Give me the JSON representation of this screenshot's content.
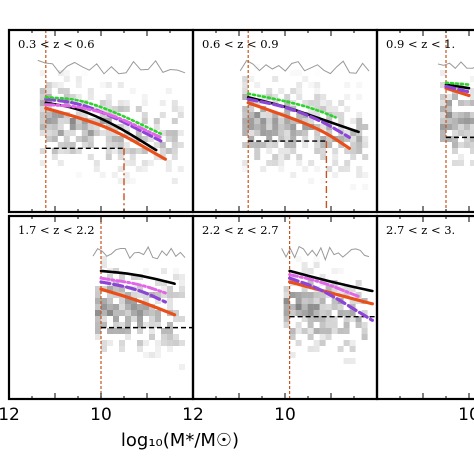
{
  "chart_data": {
    "type": "line",
    "xlabel": "log₁₀(M*/M☉)",
    "x_axis_reversed": true,
    "grid": false,
    "colors": {
      "black_curve": "#000000",
      "orange_curve": "#ea4f1a",
      "purple_curve": "#8d45d8",
      "magenta_curve": "#e267e8",
      "green_curve": "#2bd42b",
      "completeness_line": "#c9541a",
      "histogram_fill": "#5a5a5a",
      "histogram_outline": "#9a9a9a"
    },
    "panels": [
      {
        "label": "0.3 < z < 0.6",
        "xlim": [
          12,
          8
        ],
        "x_ticks": [
          "12",
          "10"
        ],
        "mass_limit": 11.2,
        "secondary_limit": 9.5,
        "reference_level": 0.35,
        "curves": {
          "black": [
            [
              11.2,
              0.6
            ],
            [
              10.5,
              0.57
            ],
            [
              9.7,
              0.48
            ],
            [
              8.8,
              0.34
            ]
          ],
          "orange": [
            [
              11.2,
              0.57
            ],
            [
              10.5,
              0.52
            ],
            [
              9.7,
              0.45
            ],
            [
              8.6,
              0.29
            ]
          ],
          "purple": [
            [
              11.2,
              0.62
            ],
            [
              10.5,
              0.6
            ],
            [
              9.7,
              0.52
            ],
            [
              8.7,
              0.39
            ]
          ],
          "magenta": [
            [
              11.2,
              0.59
            ],
            [
              10.5,
              0.58
            ],
            [
              9.7,
              0.53
            ],
            [
              8.7,
              0.41
            ]
          ],
          "green": [
            [
              11.2,
              0.63
            ],
            [
              10.5,
              0.62
            ],
            [
              9.7,
              0.55
            ],
            [
              8.7,
              0.43
            ]
          ]
        }
      },
      {
        "label": "0.6 < z < 0.9",
        "xlim": [
          12,
          8
        ],
        "x_ticks": [],
        "mass_limit": 10.8,
        "secondary_limit": 9.1,
        "reference_level": 0.39,
        "curves": {
          "black": [
            [
              10.8,
              0.63
            ],
            [
              10.0,
              0.58
            ],
            [
              9.2,
              0.51
            ],
            [
              8.4,
              0.44
            ]
          ],
          "orange": [
            [
              10.8,
              0.6
            ],
            [
              10.0,
              0.53
            ],
            [
              9.2,
              0.45
            ],
            [
              8.6,
              0.35
            ]
          ],
          "purple": [
            [
              10.8,
              0.62
            ],
            [
              10.0,
              0.58
            ],
            [
              9.2,
              0.5
            ],
            [
              8.6,
              0.41
            ]
          ],
          "green": [
            [
              10.8,
              0.65
            ],
            [
              10.0,
              0.61
            ],
            [
              9.4,
              0.57
            ],
            [
              8.9,
              0.52
            ]
          ]
        }
      },
      {
        "label": "0.9 < z < 1.",
        "xlim": [
          12,
          8
        ],
        "x_ticks": [
          "10"
        ],
        "mass_limit": 10.5,
        "reference_level": 0.41,
        "curves": {
          "black": [
            [
              10.5,
              0.7
            ],
            [
              10.0,
              0.68
            ]
          ],
          "orange": [
            [
              10.5,
              0.68
            ],
            [
              10.0,
              0.64
            ]
          ],
          "purple": [
            [
              10.5,
              0.69
            ],
            [
              10.0,
              0.66
            ]
          ],
          "green": [
            [
              10.5,
              0.71
            ],
            [
              10.0,
              0.7
            ]
          ]
        }
      },
      {
        "label": "1.7 < z < 2.2",
        "xlim": [
          12,
          8
        ],
        "x_ticks": [
          "12",
          "10"
        ],
        "mass_limit": 10.0,
        "reference_level": 0.39,
        "curves": {
          "black": [
            [
              10.0,
              0.7
            ],
            [
              9.2,
              0.68
            ],
            [
              8.4,
              0.63
            ]
          ],
          "orange": [
            [
              10.0,
              0.6
            ],
            [
              9.2,
              0.54
            ],
            [
              8.4,
              0.46
            ]
          ],
          "purple": [
            [
              10.0,
              0.64
            ],
            [
              9.2,
              0.6
            ],
            [
              8.6,
              0.53
            ]
          ],
          "magenta": [
            [
              10.0,
              0.66
            ],
            [
              9.2,
              0.63
            ],
            [
              8.6,
              0.58
            ]
          ]
        }
      },
      {
        "label": "2.2 < z < 2.7",
        "xlim": [
          12,
          8
        ],
        "x_ticks": [
          "10",
          "12"
        ],
        "mass_limit": 9.9,
        "reference_level": 0.45,
        "curves": {
          "black": [
            [
              9.9,
              0.7
            ],
            [
              9.0,
              0.64
            ],
            [
              8.1,
              0.59
            ]
          ],
          "orange": [
            [
              9.9,
              0.64
            ],
            [
              9.0,
              0.58
            ],
            [
              8.1,
              0.52
            ]
          ],
          "purple": [
            [
              9.9,
              0.66
            ],
            [
              9.2,
              0.6
            ],
            [
              8.1,
              0.43
            ]
          ],
          "magenta": [
            [
              9.9,
              0.68
            ],
            [
              9.2,
              0.64
            ],
            [
              8.4,
              0.56
            ]
          ]
        }
      },
      {
        "label": "2.7 < z < 3.",
        "xlim": [
          12,
          8
        ],
        "x_ticks": [
          "10"
        ],
        "curves": {}
      }
    ]
  }
}
